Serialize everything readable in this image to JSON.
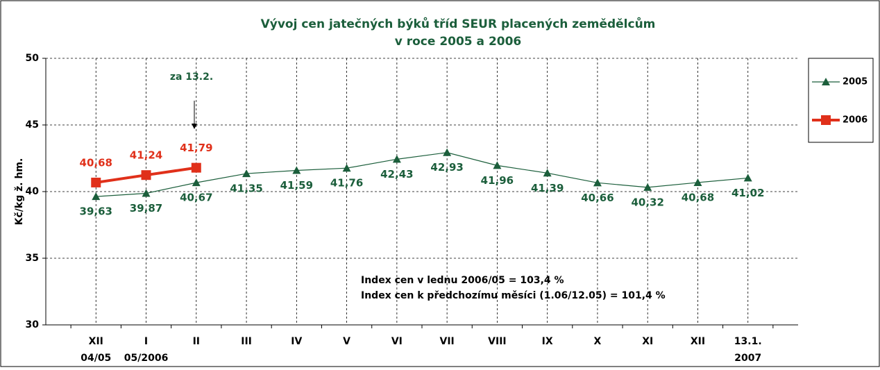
{
  "chart_data": {
    "type": "line",
    "title": [
      "Vývoj cen jatečných býků tříd SEUR placených zemědělcům",
      "v roce 2005 a 2006"
    ],
    "y_label": "Kč/kg ž. hm.",
    "categories": [
      [
        "XII",
        "04/05"
      ],
      [
        "I",
        "05/2006"
      ],
      [
        "II"
      ],
      [
        "III"
      ],
      [
        "IV"
      ],
      [
        "V"
      ],
      [
        "VI"
      ],
      [
        "VII"
      ],
      [
        "VIII"
      ],
      [
        "IX"
      ],
      [
        "X"
      ],
      [
        "XI"
      ],
      [
        "XII"
      ],
      [
        "13.1.",
        "2007"
      ]
    ],
    "series": [
      {
        "name": "2005",
        "color": "#1b5e3b",
        "marker": "triangle",
        "values": [
          39.63,
          39.87,
          40.67,
          41.35,
          41.59,
          41.76,
          42.43,
          42.93,
          41.96,
          41.39,
          40.66,
          40.32,
          40.68,
          41.02
        ],
        "value_labels": [
          "39,63",
          "39,87",
          "40,67",
          "41,35",
          "41,59",
          "41,76",
          "42,43",
          "42,93",
          "41,96",
          "41,39",
          "40,66",
          "40,32",
          "40,68",
          "41,02"
        ]
      },
      {
        "name": "2006",
        "color": "#e0301a",
        "marker": "square",
        "values": [
          40.68,
          41.24,
          41.79,
          null,
          null,
          null,
          null,
          null,
          null,
          null,
          null,
          null,
          null,
          null
        ],
        "value_labels": [
          "40,68",
          "41,24",
          "41,79",
          null,
          null,
          null,
          null,
          null,
          null,
          null,
          null,
          null,
          null,
          null
        ]
      }
    ],
    "ylim": [
      30,
      50
    ],
    "yticks": [
      30,
      35,
      40,
      45,
      50
    ],
    "grid": true,
    "legend": "right",
    "annotations": [
      "za 13.2.",
      "Index cen v lednu 2006/05 = 103,4 %",
      "Index cen k předchozímu měsíci (1.06/12.05) = 101,4 %"
    ]
  }
}
